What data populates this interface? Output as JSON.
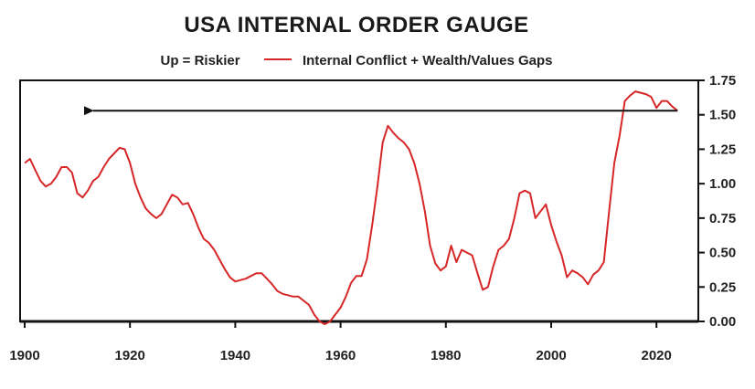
{
  "chart_data": {
    "type": "line",
    "title": "USA INTERNAL ORDER GAUGE",
    "annotation": "Up = Riskier",
    "xlabel": "",
    "ylabel": "",
    "xlim": [
      1900,
      2025
    ],
    "ylim": [
      0,
      1.75
    ],
    "x_ticks": [
      1900,
      1920,
      1940,
      1960,
      1980,
      2000,
      2020
    ],
    "y_ticks": [
      "0.00",
      "0.25",
      "0.50",
      "0.75",
      "1.00",
      "1.25",
      "1.50",
      "1.75"
    ],
    "grid": false,
    "legend_position": "top",
    "arrow": {
      "from_x": 2024,
      "to_x": 1913,
      "y": 1.53,
      "direction": "left"
    },
    "series": [
      {
        "name": "Internal Conflict + Wealth/Values Gaps",
        "color": "#d62728",
        "x": [
          1900,
          1901,
          1902,
          1903,
          1904,
          1905,
          1906,
          1907,
          1908,
          1909,
          1910,
          1911,
          1912,
          1913,
          1914,
          1915,
          1916,
          1917,
          1918,
          1919,
          1920,
          1921,
          1922,
          1923,
          1924,
          1925,
          1926,
          1927,
          1928,
          1929,
          1930,
          1931,
          1932,
          1933,
          1934,
          1935,
          1936,
          1937,
          1938,
          1939,
          1940,
          1941,
          1942,
          1943,
          1944,
          1945,
          1946,
          1947,
          1948,
          1949,
          1950,
          1951,
          1952,
          1953,
          1954,
          1955,
          1956,
          1957,
          1958,
          1959,
          1960,
          1961,
          1962,
          1963,
          1964,
          1965,
          1966,
          1967,
          1968,
          1969,
          1970,
          1971,
          1972,
          1973,
          1974,
          1975,
          1976,
          1977,
          1978,
          1979,
          1980,
          1981,
          1982,
          1983,
          1984,
          1985,
          1986,
          1987,
          1988,
          1989,
          1990,
          1991,
          1992,
          1993,
          1994,
          1995,
          1996,
          1997,
          1998,
          1999,
          2000,
          2001,
          2002,
          2003,
          2004,
          2005,
          2006,
          2007,
          2008,
          2009,
          2010,
          2011,
          2012,
          2013,
          2014,
          2015,
          2016,
          2017,
          2018,
          2019,
          2020,
          2021,
          2022,
          2023,
          2024
        ],
        "values": [
          1.15,
          1.18,
          1.1,
          1.02,
          0.98,
          1.0,
          1.05,
          1.12,
          1.12,
          1.08,
          0.93,
          0.9,
          0.95,
          1.02,
          1.05,
          1.12,
          1.18,
          1.22,
          1.26,
          1.25,
          1.15,
          1.0,
          0.9,
          0.82,
          0.78,
          0.75,
          0.78,
          0.85,
          0.92,
          0.9,
          0.85,
          0.86,
          0.78,
          0.68,
          0.6,
          0.57,
          0.52,
          0.45,
          0.38,
          0.32,
          0.29,
          0.3,
          0.31,
          0.33,
          0.35,
          0.35,
          0.31,
          0.27,
          0.22,
          0.2,
          0.19,
          0.18,
          0.18,
          0.15,
          0.12,
          0.05,
          0.0,
          -0.02,
          0.0,
          0.05,
          0.1,
          0.18,
          0.28,
          0.33,
          0.33,
          0.45,
          0.7,
          0.98,
          1.3,
          1.42,
          1.37,
          1.33,
          1.3,
          1.25,
          1.15,
          1.0,
          0.8,
          0.55,
          0.42,
          0.37,
          0.4,
          0.55,
          0.43,
          0.52,
          0.5,
          0.48,
          0.35,
          0.23,
          0.25,
          0.4,
          0.52,
          0.55,
          0.6,
          0.75,
          0.93,
          0.95,
          0.93,
          0.75,
          0.8,
          0.85,
          0.7,
          0.58,
          0.48,
          0.32,
          0.37,
          0.35,
          0.32,
          0.27,
          0.34,
          0.37,
          0.43,
          0.8,
          1.15,
          1.35,
          1.6,
          1.64,
          1.67,
          1.66,
          1.65,
          1.63,
          1.55,
          1.6,
          1.6,
          1.56,
          1.53
        ]
      }
    ]
  }
}
